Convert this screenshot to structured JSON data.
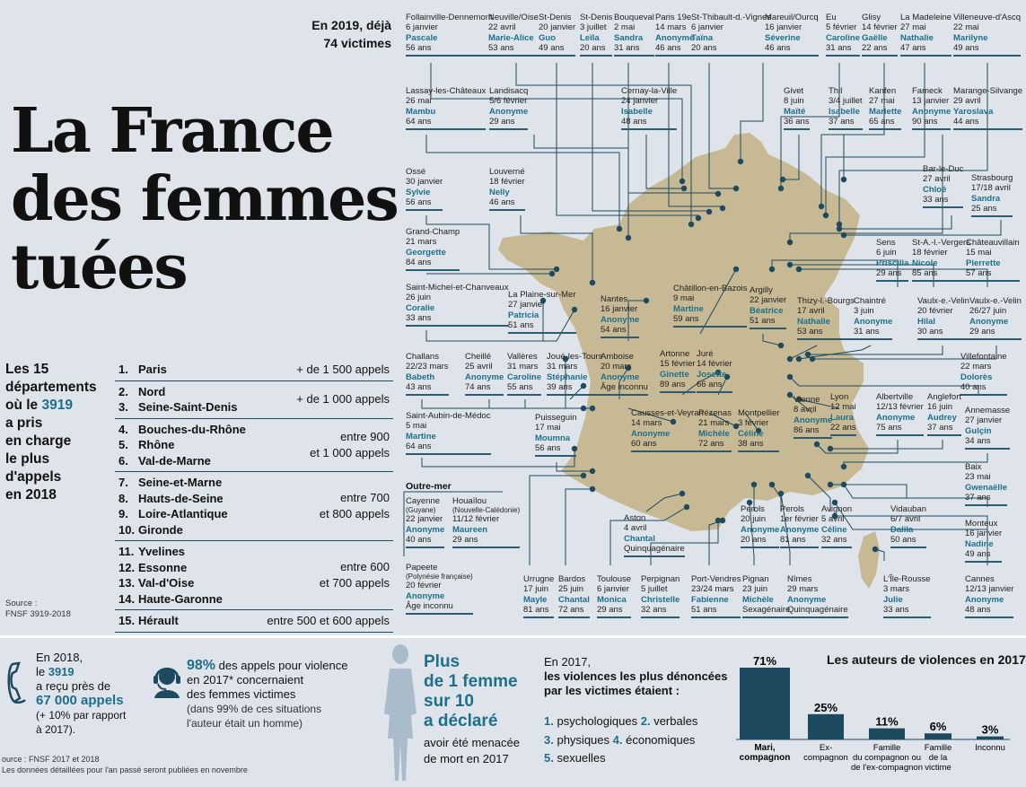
{
  "intro": {
    "line1": "En 2019, déjà",
    "line2": "74 victimes"
  },
  "title": [
    "La France",
    "des femmes",
    "tuées"
  ],
  "victims": [
    {
      "place": "Follainville-Dennemont",
      "date": "6 janvier",
      "name": "Pascale",
      "age": "56 ans"
    },
    {
      "place": "Neuville/Oise",
      "date": "22 avril",
      "name": "Marie-Alice",
      "age": "53 ans"
    },
    {
      "place": "St-Denis",
      "date": "20 janvier",
      "name": "Guo",
      "age": "49 ans"
    },
    {
      "place": "St-Denis",
      "date": "3 juillet",
      "name": "Leïla",
      "age": "20 ans"
    },
    {
      "place": "Bouqueval",
      "date": "2 mai",
      "name": "Sandra",
      "age": "31 ans"
    },
    {
      "place": "Paris 19e",
      "date": "14 mars",
      "name": "Anonyme",
      "age": "46 ans"
    },
    {
      "place": "St-Thibault-d.-Vignes",
      "date": "6 janvier",
      "name": "Taïna",
      "age": "20 ans"
    },
    {
      "place": "Mareuil/Ourcq",
      "date": "16 janvier",
      "name": "Séverine",
      "age": "46 ans"
    },
    {
      "place": "Eu",
      "date": "5 février",
      "name": "Caroline",
      "age": "31 ans"
    },
    {
      "place": "Glisy",
      "date": "14 février",
      "name": "Gaëlle",
      "age": "22 ans"
    },
    {
      "place": "La Madeleine",
      "date": "27 mai",
      "name": "Nathalie",
      "age": "47 ans"
    },
    {
      "place": "Villeneuve-d'Ascq",
      "date": "22 mai",
      "name": "Marilyne",
      "age": "49 ans"
    },
    {
      "place": "Lassay-les-Châteaux",
      "date": "26 mai",
      "name": "Mambu",
      "age": "64 ans"
    },
    {
      "place": "Landisacq",
      "date": "5/6 février",
      "name": "Anonyme",
      "age": "29 ans"
    },
    {
      "place": "Cernay-la-Ville",
      "date": "24 janvier",
      "name": "Isabelle",
      "age": "48 ans"
    },
    {
      "place": "Givet",
      "date": "8 juin",
      "name": "Maïté",
      "age": "36 ans"
    },
    {
      "place": "Thil",
      "date": "3/4 juillet",
      "name": "Isabelle",
      "age": "37 ans"
    },
    {
      "place": "Kanfen",
      "date": "27 mai",
      "name": "Mariette",
      "age": "65 ans"
    },
    {
      "place": "Fameck",
      "date": "13 janvier",
      "name": "Anonyme",
      "age": "90 ans"
    },
    {
      "place": "Marange-Silvange",
      "date": "29 avril",
      "name": "Yaroslava",
      "age": "44 ans"
    },
    {
      "place": "Ossé",
      "date": "30 janvier",
      "name": "Sylvie",
      "age": "56 ans"
    },
    {
      "place": "Louverné",
      "date": "18 février",
      "name": "Nelly",
      "age": "46 ans"
    },
    {
      "place": "Bar-le-Duc",
      "date": "27 avril",
      "name": "Chloé",
      "age": "33 ans"
    },
    {
      "place": "Strasbourg",
      "date": "17/18 avril",
      "name": "Sandra",
      "age": "25 ans"
    },
    {
      "place": "Grand-Champ",
      "date": "21 mars",
      "name": "Georgette",
      "age": "84 ans"
    },
    {
      "place": "Sens",
      "date": "6 juin",
      "name": "Priscilla",
      "age": "29 ans"
    },
    {
      "place": "St-A.-l.-Vergers",
      "date": "18 février",
      "name": "Nicole",
      "age": "85 ans"
    },
    {
      "place": "Châteauvillain",
      "date": "15 mai",
      "name": "Pierrette",
      "age": "57 ans"
    },
    {
      "place": "Saint-Michel-et-Chanveaux",
      "date": "26 juin",
      "name": "Coralie",
      "age": "33 ans"
    },
    {
      "place": "La Plaine-sur-Mer",
      "date": "27 janvier",
      "name": "Patricia",
      "age": "51 ans"
    },
    {
      "place": "Nantes",
      "date": "16 janvier",
      "name": "Anonyme",
      "age": "54 ans"
    },
    {
      "place": "Châtillon-en-Bazois",
      "date": "9 mai",
      "name": "Martine",
      "age": "59 ans"
    },
    {
      "place": "Argilly",
      "date": "22 janvier",
      "name": "Béatrice",
      "age": "51 ans"
    },
    {
      "place": "Thizy-l.-Bourgs",
      "date": "17 avril",
      "name": "Nathalie",
      "age": "53 ans"
    },
    {
      "place": "Chaintré",
      "date": "3 juin",
      "name": "Anonyme",
      "age": "31 ans"
    },
    {
      "place": "Vaulx-e.-Velin",
      "date": "20 février",
      "name": "Hilal",
      "age": "30 ans"
    },
    {
      "place": "Vaulx-e.-Velin",
      "date": "26/27 juin",
      "name": "Anonyme",
      "age": "29 ans"
    },
    {
      "place": "Challans",
      "date": "22/23 mars",
      "name": "Babeth",
      "age": "43 ans"
    },
    {
      "place": "Cheillé",
      "date": "25 avril",
      "name": "Anonyme",
      "age": "74 ans"
    },
    {
      "place": "Vallères",
      "date": "31 mars",
      "name": "Caroline",
      "age": "55 ans"
    },
    {
      "place": "Joué-les-Tours",
      "date": "31 mars",
      "name": "Stéphanie",
      "age": "39 ans"
    },
    {
      "place": "Amboise",
      "date": "20 mars",
      "name": "Anonyme",
      "age": "Âge inconnu"
    },
    {
      "place": "Artonne",
      "date": "15 février",
      "name": "Ginette",
      "age": "89 ans"
    },
    {
      "place": "Juré",
      "date": "14 février",
      "name": "Josette",
      "age": "66 ans"
    },
    {
      "place": "Villefontaine",
      "date": "22 mars",
      "name": "Dolorès",
      "age": "40 ans"
    },
    {
      "place": "Saint-Aubin-de-Médoc",
      "date": "5 mai",
      "name": "Martine",
      "age": "64 ans"
    },
    {
      "place": "Puisseguin",
      "date": "17 mai",
      "name": "Moumna",
      "age": "56 ans"
    },
    {
      "place": "Causses-et-Veyran",
      "date": "14 mars",
      "name": "Anonyme",
      "age": "60 ans"
    },
    {
      "place": "Pézenas",
      "date": "21 mars",
      "name": "Michèle",
      "age": "72 ans"
    },
    {
      "place": "Montpellier",
      "date": "3 février",
      "name": "Céline",
      "age": "38 ans"
    },
    {
      "place": "Vienne",
      "date": "8 avril",
      "name": "Anonyme",
      "age": "86 ans"
    },
    {
      "place": "Lyon",
      "date": "12 mai",
      "name": "Laura",
      "age": "22 ans"
    },
    {
      "place": "Albertville",
      "date": "12/13 février",
      "name": "Anonyme",
      "age": "75 ans"
    },
    {
      "place": "Anglefort",
      "date": "16 juin",
      "name": "Audrey",
      "age": "37 ans"
    },
    {
      "place": "Annemasse",
      "date": "27 janvier",
      "name": "Gulçin",
      "age": "34 ans"
    },
    {
      "place": "Baix",
      "date": "23 mai",
      "name": "Gwenaëlle",
      "age": "37 ans"
    },
    {
      "place": "Cayenne",
      "sub": "(Guyane)",
      "date": "22 janvier",
      "name": "Anonyme",
      "age": "40 ans"
    },
    {
      "place": "Houaïlou",
      "sub": "(Nouvelle-Calédonie)",
      "date": "11/12 février",
      "name": "Maureen",
      "age": "29 ans"
    },
    {
      "place": "Aston",
      "date": "4 avril",
      "name": "Chantal",
      "age": "Quinquagénaire"
    },
    {
      "place": "Perols",
      "date": "20 juin",
      "name": "Anonyme",
      "age": "20 ans"
    },
    {
      "place": "Perols",
      "date": "1er février",
      "name": "Anonyme",
      "age": "81 ans"
    },
    {
      "place": "Avignon",
      "date": "5 avril",
      "name": "Céline",
      "age": "32 ans"
    },
    {
      "place": "Vidauban",
      "date": "6/7 avril",
      "name": "Dalila",
      "age": "50 ans"
    },
    {
      "place": "Monteux",
      "date": "16 janvier",
      "name": "Nadine",
      "age": "49 ans"
    },
    {
      "place": "Papeete",
      "sub": "(Polynésie française)",
      "date": "20 février",
      "name": "Anonyme",
      "age": "Âge inconnu"
    },
    {
      "place": "Urrugne",
      "date": "17 juin",
      "name": "Mayle",
      "age": "81 ans"
    },
    {
      "place": "Bardos",
      "date": "25 juin",
      "name": "Chantal",
      "age": "72 ans"
    },
    {
      "place": "Toulouse",
      "date": "6 janvier",
      "name": "Monica",
      "age": "29 ans"
    },
    {
      "place": "Perpignan",
      "date": "5 juillet",
      "name": "Christelle",
      "age": "32 ans"
    },
    {
      "place": "Port-Vendres",
      "date": "23/24 mars",
      "name": "Fabienne",
      "age": "51 ans"
    },
    {
      "place": "Pignan",
      "date": "23 juin",
      "name": "Michèle",
      "age": "Sexagénaire"
    },
    {
      "place": "Nîmes",
      "date": "29 mars",
      "name": "Anonyme",
      "age": "Quinquagénaire"
    },
    {
      "place": "L'Île-Rousse",
      "date": "3 mars",
      "name": "Julie",
      "age": "33 ans"
    },
    {
      "place": "Cannes",
      "date": "12/13 janvier",
      "name": "Anonyme",
      "age": "48 ans"
    }
  ],
  "outre_mer_label": "Outre-mer",
  "ranking": {
    "intro": [
      "Les 15",
      "départements",
      "où le ",
      "3919",
      "a pris",
      "en charge",
      "le plus",
      "d'appels",
      "en 2018"
    ],
    "groups": [
      {
        "items": [
          {
            "n": "1.",
            "d": "Paris"
          }
        ],
        "range": "+ de 1 500 appels"
      },
      {
        "items": [
          {
            "n": "2.",
            "d": "Nord"
          },
          {
            "n": "3.",
            "d": "Seine-Saint-Denis"
          }
        ],
        "range": "+ de 1 000 appels"
      },
      {
        "items": [
          {
            "n": "4.",
            "d": "Bouches-du-Rhône"
          },
          {
            "n": "5.",
            "d": "Rhône"
          },
          {
            "n": "6.",
            "d": "Val-de-Marne"
          }
        ],
        "range": "entre 900\net 1 000 appels"
      },
      {
        "items": [
          {
            "n": "7.",
            "d": "Seine-et-Marne"
          },
          {
            "n": "8.",
            "d": "Hauts-de-Seine"
          },
          {
            "n": "9.",
            "d": "Loire-Atlantique"
          },
          {
            "n": "10.",
            "d": "Gironde"
          }
        ],
        "range": "entre 700\net 800 appels"
      },
      {
        "items": [
          {
            "n": "11.",
            "d": "Yvelines"
          },
          {
            "n": "12.",
            "d": "Essonne"
          },
          {
            "n": "13.",
            "d": "Val-d'Oise"
          },
          {
            "n": "14.",
            "d": "Haute-Garonne"
          }
        ],
        "range": "entre 600\net 700 appels"
      },
      {
        "items": [
          {
            "n": "15.",
            "d": "Hérault"
          }
        ],
        "range": "entre 500 et 600 appels"
      }
    ],
    "source": [
      "Source :",
      "FNSF 3919-2018"
    ]
  },
  "stats": {
    "calls": {
      "l1": "En 2018,",
      "l2a": "le ",
      "l2b": "3919",
      "l3": "a reçu près de",
      "l4": "67 000 appels",
      "l5": "(+ 10% par rapport",
      "l6": "à 2017)."
    },
    "pct": {
      "big": "98%",
      "l1": " des appels pour violence",
      "l2": "en 2017* concernaient",
      "l3": "des femmes victimes",
      "l4": "(dans 99% de ces situations",
      "l5": "l'auteur était un homme)"
    },
    "women": {
      "p1": "Plus",
      "p2": "de 1 femme",
      "p3": "sur 10",
      "p4": "a déclaré",
      "l1": "avoir été menacée",
      "l2": "de mort en 2017"
    },
    "violences": {
      "t1": "En 2017,",
      "t2": "les violences les plus dénoncées",
      "t3": "par les victimes étaient :",
      "r1": [
        {
          "n": "1.",
          "t": "psychologiques"
        },
        {
          "n": "2.",
          "t": "verbales"
        }
      ],
      "r2": [
        {
          "n": "3.",
          "t": "physiques"
        },
        {
          "n": "4.",
          "t": "économiques"
        }
      ],
      "r3": [
        {
          "n": "5.",
          "t": "sexuelles"
        }
      ]
    },
    "source": [
      "ource : FNSF 2017 et 2018",
      "Les données détaillées pour l'an passé seront publiées en novembre"
    ]
  },
  "chart_data": {
    "type": "bar",
    "title": "Les auteurs de violences en 2017",
    "categories": [
      "Mari, compagnon",
      "Ex-compagnon",
      "Famille du compagnon ou de l'ex-compagnon",
      "Famille de la victime",
      "Inconnu"
    ],
    "values": [
      71,
      25,
      11,
      6,
      3
    ],
    "value_labels": [
      "71%",
      "25%",
      "11%",
      "6%",
      "3%"
    ],
    "color": "#1d4a5e"
  },
  "colors": {
    "accent": "#1d6f8c",
    "dark": "#1d4a5e",
    "map": "#c7b994",
    "bg": "#dfe4ea"
  }
}
